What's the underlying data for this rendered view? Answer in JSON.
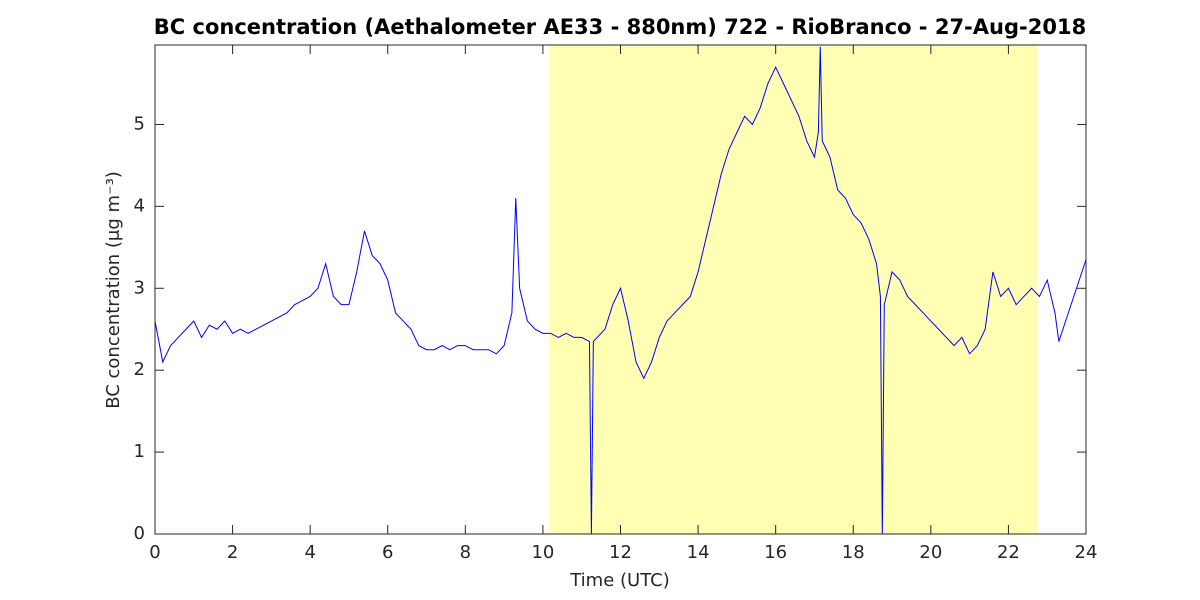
{
  "chart_data": {
    "type": "line",
    "title": "BC concentration (Aethalometer AE33 - 880nm) 722 - RioBranco - 27-Aug-2018",
    "xlabel": "Time (UTC)",
    "ylabel": "BC concentration (μg m⁻³)",
    "xlim": [
      0,
      24
    ],
    "xticks": [
      0,
      2,
      4,
      6,
      8,
      10,
      12,
      14,
      16,
      18,
      20,
      22,
      24
    ],
    "ylim": [
      0,
      5.97
    ],
    "yticks": [
      0,
      1,
      2,
      3,
      4,
      5
    ],
    "highlight": {
      "xlim": [
        10.15,
        22.76
      ],
      "color": "#ffffb3"
    },
    "series": [
      {
        "color": "#0000ff",
        "x": [
          0.0,
          0.2,
          0.4,
          0.6,
          0.8,
          1.0,
          1.2,
          1.4,
          1.6,
          1.8,
          2.0,
          2.2,
          2.4,
          2.6,
          2.8,
          3.0,
          3.2,
          3.4,
          3.6,
          3.8,
          4.0,
          4.2,
          4.4,
          4.6,
          4.8,
          5.0,
          5.2,
          5.4,
          5.6,
          5.8,
          6.0,
          6.2,
          6.4,
          6.6,
          6.8,
          7.0,
          7.2,
          7.4,
          7.6,
          7.8,
          8.0,
          8.2,
          8.4,
          8.6,
          8.8,
          9.0,
          9.2,
          9.3,
          9.4,
          9.6,
          9.8,
          10.0,
          10.2,
          10.4,
          10.6,
          10.8,
          11.0,
          11.2,
          11.25,
          11.3,
          11.4,
          11.6,
          11.8,
          12.0,
          12.2,
          12.4,
          12.6,
          12.8,
          13.0,
          13.2,
          13.4,
          13.6,
          13.8,
          14.0,
          14.2,
          14.4,
          14.6,
          14.8,
          15.0,
          15.2,
          15.4,
          15.6,
          15.8,
          16.0,
          16.2,
          16.4,
          16.6,
          16.8,
          17.0,
          17.1,
          17.15,
          17.2,
          17.4,
          17.6,
          17.8,
          18.0,
          18.2,
          18.4,
          18.6,
          18.7,
          18.75,
          18.8,
          19.0,
          19.2,
          19.4,
          19.6,
          19.8,
          20.0,
          20.2,
          20.4,
          20.6,
          20.8,
          21.0,
          21.2,
          21.4,
          21.6,
          21.8,
          22.0,
          22.2,
          22.4,
          22.6,
          22.8,
          23.0,
          23.2,
          23.3,
          24.0
        ],
        "values": [
          2.6,
          2.1,
          2.3,
          2.4,
          2.5,
          2.6,
          2.4,
          2.55,
          2.5,
          2.6,
          2.45,
          2.5,
          2.45,
          2.5,
          2.55,
          2.6,
          2.65,
          2.7,
          2.8,
          2.85,
          2.9,
          3.0,
          3.3,
          2.9,
          2.8,
          2.8,
          3.2,
          3.7,
          3.4,
          3.3,
          3.1,
          2.7,
          2.6,
          2.5,
          2.3,
          2.25,
          2.25,
          2.3,
          2.25,
          2.3,
          2.3,
          2.25,
          2.25,
          2.25,
          2.2,
          2.3,
          2.7,
          4.1,
          3.0,
          2.6,
          2.5,
          2.45,
          2.45,
          2.4,
          2.45,
          2.4,
          2.4,
          2.35,
          0.0,
          2.35,
          2.4,
          2.5,
          2.8,
          3.0,
          2.6,
          2.1,
          1.9,
          2.1,
          2.4,
          2.6,
          2.7,
          2.8,
          2.9,
          3.2,
          3.6,
          4.0,
          4.4,
          4.7,
          4.9,
          5.1,
          5.0,
          5.2,
          5.5,
          5.7,
          5.5,
          5.3,
          5.1,
          4.8,
          4.6,
          4.9,
          5.95,
          4.8,
          4.6,
          4.2,
          4.1,
          3.9,
          3.8,
          3.6,
          3.3,
          2.9,
          0.0,
          2.8,
          3.2,
          3.1,
          2.9,
          2.8,
          2.7,
          2.6,
          2.5,
          2.4,
          2.3,
          2.4,
          2.2,
          2.3,
          2.5,
          3.2,
          2.9,
          3.0,
          2.8,
          2.9,
          3.0,
          2.9,
          3.1,
          2.7,
          2.35,
          3.35
        ]
      }
    ]
  }
}
